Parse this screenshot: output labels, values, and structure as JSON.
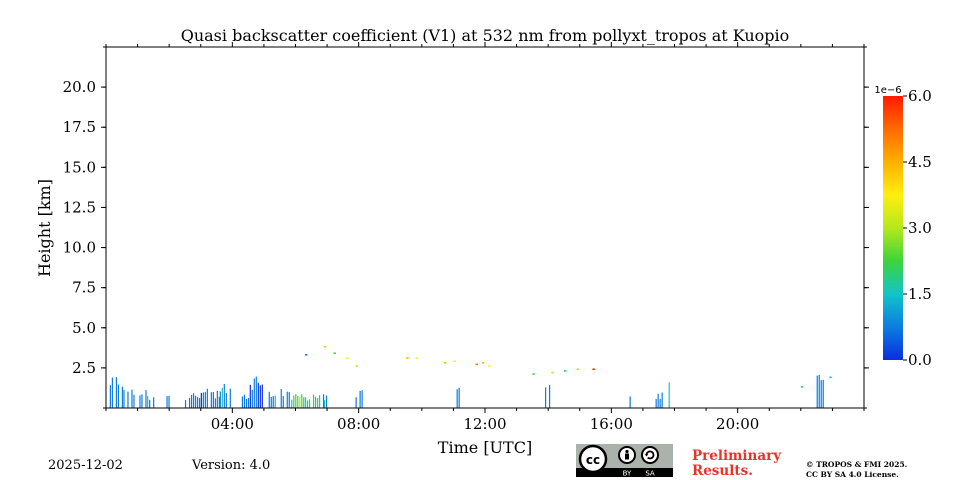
{
  "chart_data": {
    "type": "heatmap",
    "title": "Quasi backscatter coefficient (V1) at 532 nm from pollyxt_tropos at Kuopio",
    "xlabel": "Time [UTC]",
    "ylabel": "Height [km]",
    "xlim_hours": [
      0,
      24
    ],
    "ylim_km": [
      0,
      22.5
    ],
    "x_ticks": [
      {
        "hour": 4,
        "label": "04:00"
      },
      {
        "hour": 8,
        "label": "08:00"
      },
      {
        "hour": 12,
        "label": "12:00"
      },
      {
        "hour": 16,
        "label": "16:00"
      },
      {
        "hour": 20,
        "label": "20:00"
      }
    ],
    "y_ticks": [
      {
        "value": 2.5,
        "label": "2.5"
      },
      {
        "value": 5.0,
        "label": "5.0"
      },
      {
        "value": 7.5,
        "label": "7.5"
      },
      {
        "value": 10.0,
        "label": "10.0"
      },
      {
        "value": 12.5,
        "label": "12.5"
      },
      {
        "value": 15.0,
        "label": "15.0"
      },
      {
        "value": 17.5,
        "label": "17.5"
      },
      {
        "value": 20.0,
        "label": "20.0"
      }
    ],
    "colorbar": {
      "range": [
        0,
        6.0
      ],
      "exponent_label": "1e−6",
      "ticks": [
        {
          "value": 0.0,
          "label": "0.0"
        },
        {
          "value": 1.5,
          "label": "1.5"
        },
        {
          "value": 3.0,
          "label": "3.0"
        },
        {
          "value": 4.5,
          "label": "4.5"
        },
        {
          "value": 6.0,
          "label": "6.0"
        }
      ],
      "colors": [
        "#0a2ee0",
        "#0b7de0",
        "#12c4c8",
        "#3cd43a",
        "#b5e81c",
        "#ffee10",
        "#ffb000",
        "#ff6a00",
        "#ff1a00"
      ]
    },
    "signal_segments": [
      {
        "t0": 0.12,
        "t1": 0.55,
        "hmax": 2.3,
        "v": 0.6
      },
      {
        "t0": 0.55,
        "t1": 1.3,
        "hmax": 1.2,
        "v": 0.7
      },
      {
        "t0": 1.3,
        "t1": 1.5,
        "hmax": 1.0,
        "v": 0.9
      },
      {
        "t0": 1.85,
        "t1": 2.15,
        "hmax": 1.1,
        "v": 1.2
      },
      {
        "t0": 2.5,
        "t1": 3.0,
        "hmax": 1.1,
        "v": 0.8
      },
      {
        "t0": 3.0,
        "t1": 3.6,
        "hmax": 1.2,
        "v": 0.7
      },
      {
        "t0": 3.6,
        "t1": 3.95,
        "hmax": 1.5,
        "v": 0.9
      },
      {
        "t0": 4.3,
        "t1": 4.55,
        "hmax": 1.0,
        "v": 0.8
      },
      {
        "t0": 4.55,
        "t1": 5.15,
        "hmax": 2.2,
        "v": 0.5
      },
      {
        "t0": 5.15,
        "t1": 5.8,
        "hmax": 1.2,
        "v": 0.8
      },
      {
        "t0": 5.8,
        "t1": 6.3,
        "hmax": 1.1,
        "v": 2.2
      },
      {
        "t0": 6.3,
        "t1": 6.9,
        "hmax": 1.0,
        "v": 1.5
      },
      {
        "t0": 6.9,
        "t1": 7.0,
        "hmax": 0.8,
        "v": 1.0
      },
      {
        "t0": 7.9,
        "t1": 8.15,
        "hmax": 1.2,
        "v": 0.7
      },
      {
        "t0": 11.1,
        "t1": 11.3,
        "hmax": 1.4,
        "v": 0.6
      },
      {
        "t0": 11.75,
        "t1": 11.85,
        "hmax": 0.9,
        "v": 0.7
      },
      {
        "t0": 13.9,
        "t1": 14.1,
        "hmax": 1.8,
        "v": 0.5
      },
      {
        "t0": 16.45,
        "t1": 16.6,
        "hmax": 1.0,
        "v": 0.6
      },
      {
        "t0": 17.4,
        "t1": 17.6,
        "hmax": 1.1,
        "v": 0.6
      },
      {
        "t0": 17.75,
        "t1": 17.95,
        "hmax": 1.8,
        "v": 1.0
      },
      {
        "t0": 22.5,
        "t1": 22.85,
        "hmax": 2.1,
        "v": 0.6
      }
    ],
    "signal_speckles": [
      {
        "t": 6.3,
        "h": 3.3,
        "v": 0.4
      },
      {
        "t": 6.9,
        "h": 3.8,
        "v": 3.2
      },
      {
        "t": 7.2,
        "h": 3.4,
        "v": 2.5
      },
      {
        "t": 7.6,
        "h": 3.1,
        "v": 4.0
      },
      {
        "t": 7.9,
        "h": 2.6,
        "v": 3.0
      },
      {
        "t": 9.5,
        "h": 3.1,
        "v": 4.2
      },
      {
        "t": 9.8,
        "h": 3.1,
        "v": 3.6
      },
      {
        "t": 10.7,
        "h": 2.8,
        "v": 4.4
      },
      {
        "t": 11.0,
        "h": 2.9,
        "v": 3.8
      },
      {
        "t": 11.7,
        "h": 2.7,
        "v": 5.5
      },
      {
        "t": 11.9,
        "h": 2.8,
        "v": 4.8
      },
      {
        "t": 12.1,
        "h": 2.6,
        "v": 3.9
      },
      {
        "t": 13.5,
        "h": 2.1,
        "v": 2.6
      },
      {
        "t": 14.1,
        "h": 2.2,
        "v": 3.1
      },
      {
        "t": 14.5,
        "h": 2.3,
        "v": 1.6
      },
      {
        "t": 14.9,
        "h": 2.4,
        "v": 3.3
      },
      {
        "t": 15.4,
        "h": 2.4,
        "v": 5.8
      },
      {
        "t": 22.0,
        "h": 1.3,
        "v": 1.4
      },
      {
        "t": 22.9,
        "h": 1.9,
        "v": 1.2
      }
    ]
  },
  "footer": {
    "date": "2025-12-02",
    "version": "Version: 4.0",
    "preliminary_line1": "Preliminary",
    "preliminary_line2": "Results.",
    "copyright_line1": "© TROPOS & FMI 2025.",
    "copyright_line2": "CC BY SA 4.0 License.",
    "license_badge_left": "BY",
    "license_badge_right": "SA"
  }
}
